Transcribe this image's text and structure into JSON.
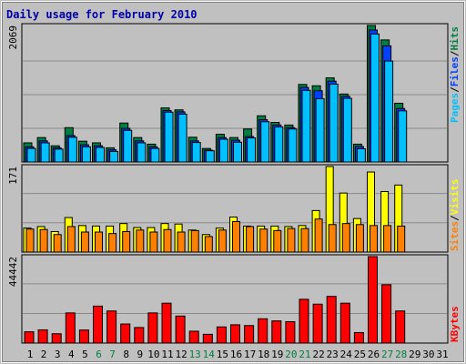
{
  "title": "Daily usage for February 2010",
  "colors": {
    "frame_bg": "#C0C0C0",
    "plot_bg": "#C0C0C0",
    "grid": "#8a8a8a",
    "title": "#0000AA",
    "hits": "#008040",
    "files": "#0040FF",
    "pages": "#00C0FF",
    "visits": "#FFFF00",
    "sites": "#FF8000",
    "kbytes": "#FF0000",
    "weekend_label": "#008040",
    "weekday_label": "#000000"
  },
  "panels": {
    "top": {
      "max_label": "2069",
      "legend": [
        "Pages",
        "Files",
        "Hits"
      ],
      "legend_sep": "/"
    },
    "mid": {
      "max_label": "171",
      "legend": [
        "Sites",
        "Visits"
      ],
      "legend_sep": "/"
    },
    "bot": {
      "max_label": "44442",
      "legend": [
        "KBytes"
      ]
    }
  },
  "chart_data": {
    "type": "bar",
    "title": "Daily usage for February 2010",
    "categories": [
      "1",
      "2",
      "3",
      "4",
      "5",
      "6",
      "7",
      "8",
      "9",
      "10",
      "11",
      "12",
      "13",
      "14",
      "15",
      "16",
      "17",
      "18",
      "19",
      "20",
      "21",
      "22",
      "23",
      "24",
      "25",
      "26",
      "27",
      "28",
      "29",
      "30",
      "31"
    ],
    "weekend_days": [
      6,
      7,
      13,
      14,
      20,
      21,
      27,
      28
    ],
    "charts": [
      {
        "name": "top",
        "ymax": 2069,
        "series": [
          {
            "name": "Hits",
            "values": [
              290,
              370,
              245,
              520,
              315,
              290,
              215,
              590,
              370,
              270,
              820,
              790,
              375,
              205,
              420,
              370,
              500,
              700,
              600,
              560,
              1175,
              1155,
              1275,
              1030,
              270,
              2069,
              1850,
              890,
              0,
              0,
              0
            ]
          },
          {
            "name": "Files",
            "values": [
              230,
              320,
              215,
              400,
              260,
              245,
              185,
              510,
              320,
              230,
              780,
              760,
              320,
              180,
              370,
              330,
              385,
              640,
              560,
              520,
              1130,
              1080,
              1225,
              995,
              235,
              2000,
              1760,
              810,
              0,
              0,
              0
            ]
          },
          {
            "name": "Pages",
            "values": [
              205,
              290,
              195,
              375,
              230,
              220,
              160,
              480,
              290,
              205,
              755,
              725,
              295,
              170,
              345,
              300,
              365,
              610,
              530,
              500,
              1085,
              960,
              1180,
              965,
              200,
              1940,
              1530,
              775,
              0,
              0,
              0
            ]
          }
        ]
      },
      {
        "name": "mid",
        "ymax": 171,
        "series": [
          {
            "name": "Visits",
            "values": [
              48,
              51,
              41,
              69,
              53,
              52,
              52,
              57,
              49,
              49,
              57,
              56,
              44,
              35,
              48,
              70,
              52,
              52,
              52,
              51,
              53,
              83,
              171,
              118,
              67,
              160,
              121,
              134,
              0,
              0,
              0
            ]
          },
          {
            "name": "Sites",
            "values": [
              46,
              45,
              35,
              51,
              40,
              40,
              37,
              41,
              44,
              40,
              45,
              40,
              43,
              31,
              44,
              61,
              51,
              46,
              43,
              47,
              47,
              66,
              55,
              57,
              55,
              53,
              53,
              52,
              0,
              0,
              0
            ]
          }
        ]
      },
      {
        "name": "bot",
        "ymax": 44442,
        "series": [
          {
            "name": "KBytes",
            "values": [
              5800,
              6800,
              4800,
              15500,
              6700,
              19000,
              16500,
              9800,
              8000,
              15500,
              20500,
              13900,
              6100,
              4500,
              8300,
              9400,
              9000,
              12500,
              11400,
              11000,
              22500,
              20000,
              24000,
              20500,
              5400,
              44442,
              30000,
              16500,
              0,
              0,
              0
            ]
          }
        ]
      }
    ]
  }
}
